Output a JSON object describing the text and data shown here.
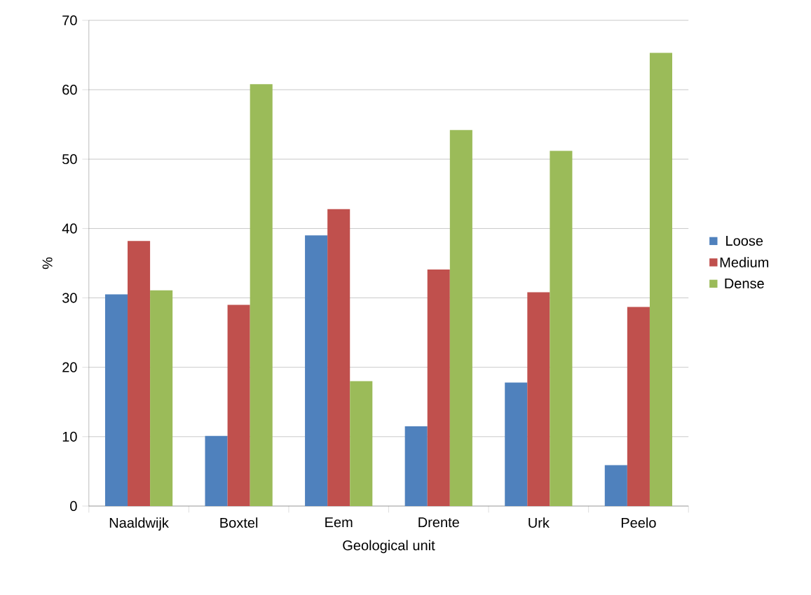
{
  "chart_data": {
    "type": "bar",
    "xlabel": "Geological unit",
    "ylabel": "%",
    "categories": [
      "Naaldwijk",
      "Boxtel",
      "Eem",
      "Drente",
      "Urk",
      "Peelo"
    ],
    "series": [
      {
        "name": "Loose",
        "color": "#4f81bd",
        "values": [
          30.5,
          10.1,
          39.0,
          11.5,
          17.8,
          5.9
        ]
      },
      {
        "name": "Medium",
        "color": "#c0504d",
        "values": [
          38.2,
          29.0,
          42.8,
          34.1,
          30.8,
          28.7
        ]
      },
      {
        "name": "Dense",
        "color": "#9bbb59",
        "values": [
          31.1,
          60.8,
          18.0,
          54.2,
          51.2,
          65.3
        ]
      }
    ],
    "ylim": [
      0,
      70
    ],
    "yticks": [
      0,
      10,
      20,
      30,
      40,
      50,
      60,
      70
    ],
    "grid": "y",
    "legend": "right"
  }
}
